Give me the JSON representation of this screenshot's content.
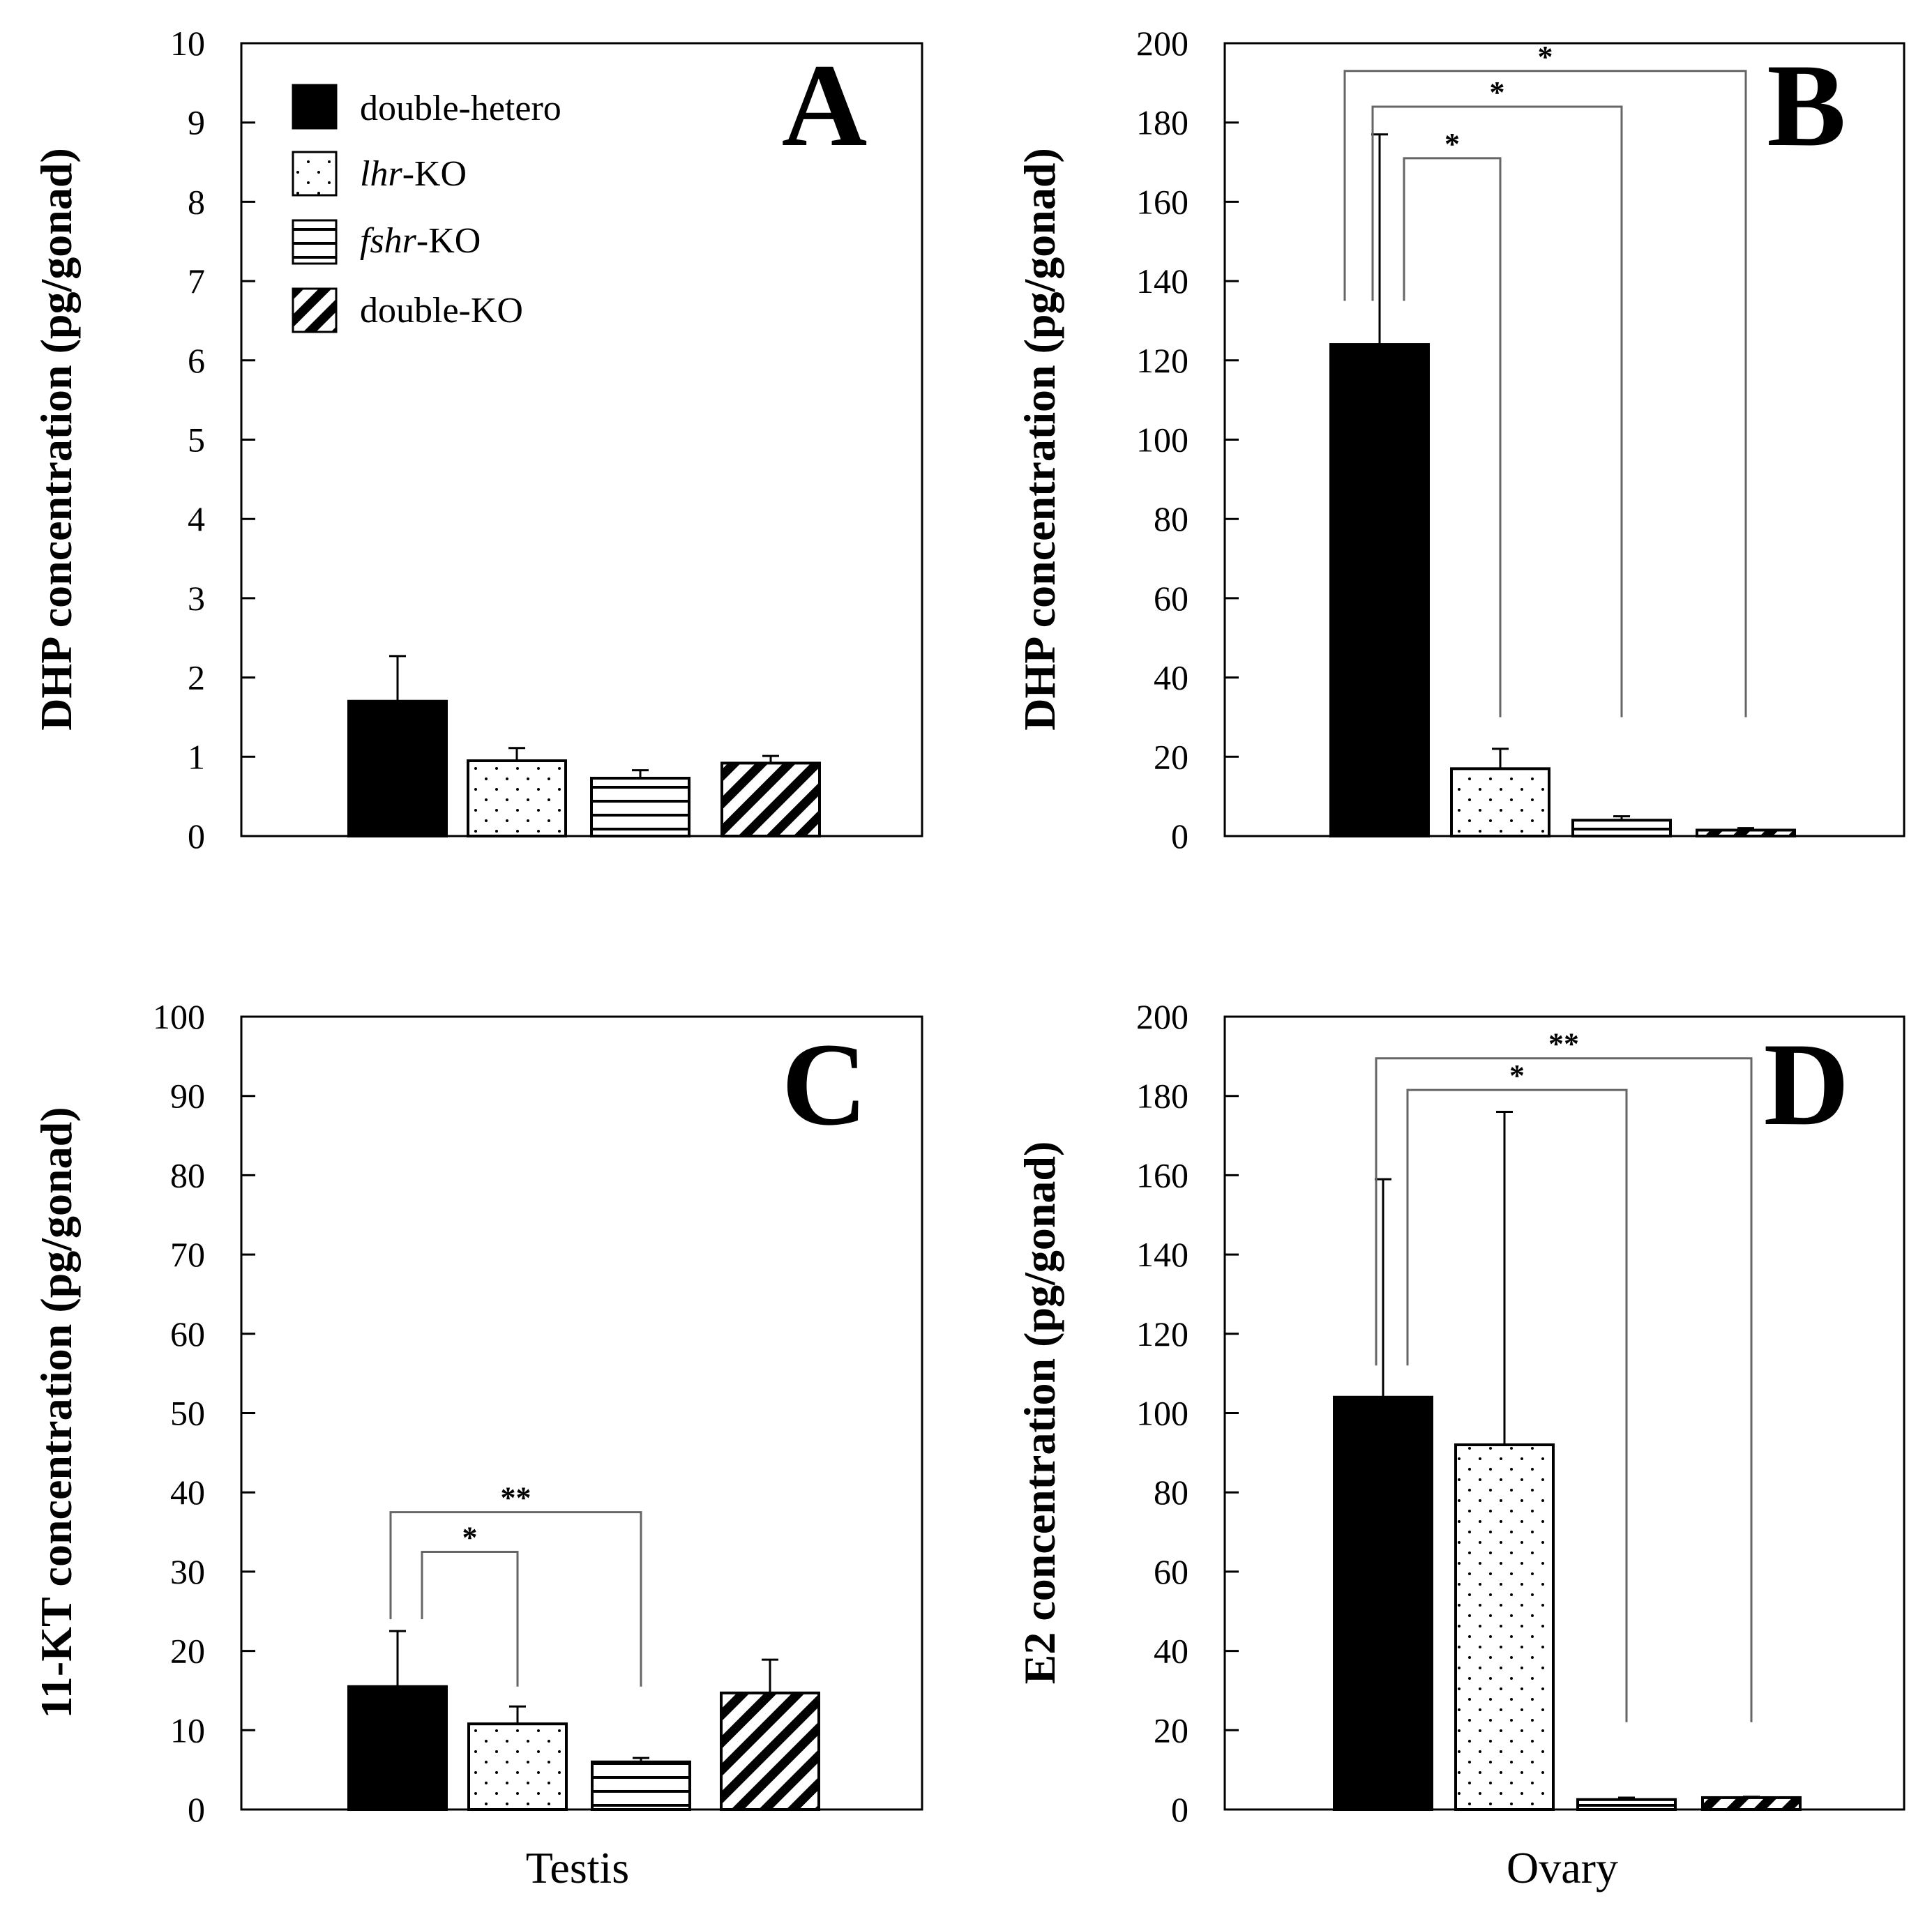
{
  "legend": [
    {
      "key": "double_hetero",
      "parts": [
        {
          "text": "double-hetero",
          "italic": false
        }
      ]
    },
    {
      "key": "lhr_ko",
      "parts": [
        {
          "text": "lhr",
          "italic": true
        },
        {
          "text": "-KO",
          "italic": false
        }
      ]
    },
    {
      "key": "fshr_ko",
      "parts": [
        {
          "text": "fshr",
          "italic": true
        },
        {
          "text": "-KO",
          "italic": false
        }
      ]
    },
    {
      "key": "double_ko",
      "parts": [
        {
          "text": "double-KO",
          "italic": false
        }
      ]
    }
  ],
  "chart_data": [
    {
      "panel": "A",
      "type": "bar",
      "ylabel": "DHP concentration (pg/gonad)",
      "xlabel": "",
      "ylim": [
        0,
        10
      ],
      "yticks": [
        0,
        1,
        2,
        3,
        4,
        5,
        6,
        7,
        8,
        9,
        10
      ],
      "categories": [
        "double-hetero",
        "lhr-KO",
        "fshr-KO",
        "double-KO"
      ],
      "values": [
        1.7,
        0.95,
        0.73,
        0.92
      ],
      "errors": [
        0.57,
        0.16,
        0.1,
        0.09
      ],
      "significance": []
    },
    {
      "panel": "B",
      "type": "bar",
      "ylabel": "DHP concentration (pg/gonad)",
      "xlabel": "",
      "ylim": [
        0,
        200
      ],
      "yticks": [
        0,
        20,
        40,
        60,
        80,
        100,
        120,
        140,
        160,
        180,
        200
      ],
      "categories": [
        "double-hetero",
        "lhr-KO",
        "fshr-KO",
        "double-KO"
      ],
      "values": [
        124,
        17,
        4,
        1.5
      ],
      "errors": [
        53,
        5,
        1,
        0.5
      ],
      "significance": [
        {
          "from": 0,
          "to": 1,
          "label": "*",
          "level": 171,
          "left_start": 135,
          "right_start": 30
        },
        {
          "from": 0,
          "to": 2,
          "label": "*",
          "level": 184,
          "left_start": 135,
          "right_start": 30
        },
        {
          "from": 0,
          "to": 3,
          "label": "*",
          "level": 193,
          "left_start": 135,
          "right_start": 30
        }
      ]
    },
    {
      "panel": "C",
      "type": "bar",
      "ylabel": "11-KT concentration (pg/gonad)",
      "xlabel": "Testis",
      "ylim": [
        0,
        100
      ],
      "yticks": [
        0,
        10,
        20,
        30,
        40,
        50,
        60,
        70,
        80,
        90,
        100
      ],
      "categories": [
        "double-hetero",
        "lhr-KO",
        "fshr-KO",
        "double-KO"
      ],
      "values": [
        15.5,
        10.8,
        6,
        14.7
      ],
      "errors": [
        7,
        2.2,
        0.5,
        4.2
      ],
      "significance": [
        {
          "from": 0,
          "to": 1,
          "label": "*",
          "level": 32.5,
          "left_start": 24,
          "right_start": 15.5
        },
        {
          "from": 0,
          "to": 2,
          "label": "**",
          "level": 37.5,
          "left_start": 24,
          "right_start": 15.5
        }
      ]
    },
    {
      "panel": "D",
      "type": "bar",
      "ylabel": "E2 concentration (pg/gonad)",
      "xlabel": "Ovary",
      "ylim": [
        0,
        200
      ],
      "yticks": [
        0,
        20,
        40,
        60,
        80,
        100,
        120,
        140,
        160,
        180,
        200
      ],
      "categories": [
        "double-hetero",
        "lhr-KO",
        "fshr-KO",
        "double-KO"
      ],
      "values": [
        104,
        92,
        2.5,
        3
      ],
      "errors": [
        55,
        84,
        0.5,
        0.2
      ],
      "significance": [
        {
          "from": 0,
          "to": 2,
          "label": "*",
          "level": 181.5,
          "left_start": 112,
          "right_start": 22
        },
        {
          "from": 0,
          "to": 3,
          "label": "**",
          "level": 189.5,
          "left_start": 112,
          "right_start": 22
        }
      ]
    }
  ]
}
